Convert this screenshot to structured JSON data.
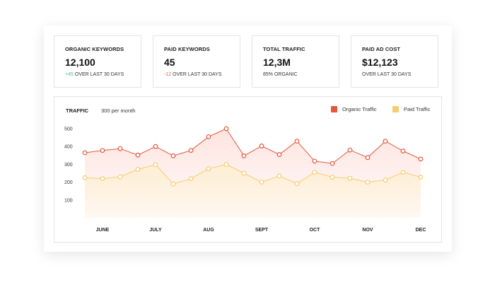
{
  "cards": [
    {
      "label": "ORGANIC KEYWORDS",
      "value": "12,100",
      "delta": "+45",
      "delta_type": "up",
      "sub": "OVER LAST 30 DAYS"
    },
    {
      "label": "PAID KEYWORDS",
      "value": "45",
      "delta": "-12",
      "delta_type": "down",
      "sub": "OVER LAST 30 DAYS"
    },
    {
      "label": "TOTAL TRAFFIC",
      "value": "12,3M",
      "delta": "",
      "delta_type": "none",
      "sub": "85% ORGANIC"
    },
    {
      "label": "PAID AD COST",
      "value": "$12,123",
      "delta": "",
      "delta_type": "none",
      "sub": "OVER LAST 30 DAYS"
    }
  ],
  "chart_header": {
    "title": "TRAFFIC",
    "subtitle": "300 per month"
  },
  "colors": {
    "organic": "#e3583b",
    "paid": "#f7cc6e",
    "organic_fill": "#fde3de",
    "paid_fill": "#fdf0d3"
  },
  "chart_data": {
    "type": "line",
    "title": "TRAFFIC",
    "xlabel": "",
    "ylabel": "",
    "ylim": [
      0,
      500
    ],
    "yticks": [
      100,
      200,
      300,
      400,
      500
    ],
    "x_tick_labels": [
      "JUNE",
      "JULY",
      "AUG",
      "SEPT",
      "OCT",
      "NOV",
      "DEC"
    ],
    "x_tick_positions": [
      1,
      4,
      7,
      10,
      13,
      16,
      19
    ],
    "grid": false,
    "legend_position": "top-right",
    "series": [
      {
        "name": "Organic Traffic",
        "values": [
          365,
          378,
          388,
          352,
          400,
          348,
          378,
          455,
          500,
          348,
          403,
          355,
          430,
          318,
          305,
          380,
          338,
          430,
          375,
          330
        ]
      },
      {
        "name": "Paid Traffic",
        "values": [
          225,
          220,
          230,
          272,
          298,
          190,
          220,
          275,
          300,
          250,
          200,
          235,
          192,
          255,
          228,
          222,
          200,
          212,
          255,
          228
        ]
      }
    ]
  }
}
